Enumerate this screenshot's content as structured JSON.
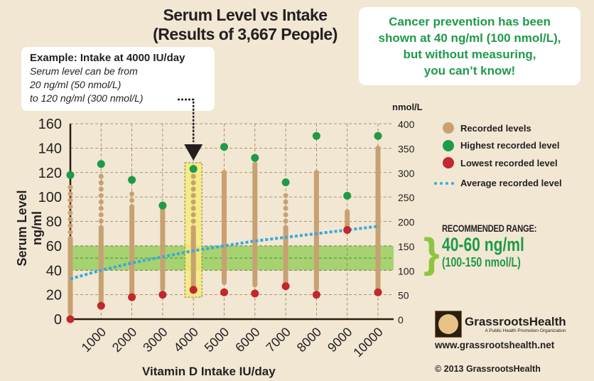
{
  "chart_data": {
    "type": "scatter",
    "title": "Serum Level vs Intake",
    "subtitle": "(Results of 3,667 People)",
    "xlabel": "Vitamin D Intake IU/day",
    "ylabel": "Serum Level ng/ml",
    "y2label": "nmol/L",
    "x": [
      0,
      1000,
      2000,
      3000,
      4000,
      5000,
      6000,
      7000,
      8000,
      9000,
      10000
    ],
    "x_tick_labels": [
      "1000",
      "2000",
      "3000",
      "4000",
      "5000",
      "6000",
      "7000",
      "8000",
      "9000",
      "10000"
    ],
    "ylim": [
      0,
      160
    ],
    "y_ticks": [
      "0",
      "20",
      "40",
      "60",
      "80",
      "100",
      "120",
      "140",
      "160"
    ],
    "y2_ticks": [
      "0",
      "50",
      "100",
      "150",
      "200",
      "250",
      "300",
      "350",
      "400"
    ],
    "grid": true,
    "legend_position": "right",
    "recommended_band": [
      40,
      60
    ],
    "highlight_x": 4000,
    "series": [
      {
        "name": "Recorded levels",
        "color": "#c8a172",
        "dense_ranges": [
          [
            5,
            66
          ],
          [
            15,
            75
          ],
          [
            20,
            92
          ],
          [
            25,
            90
          ],
          [
            25,
            75
          ],
          [
            30,
            120
          ],
          [
            28,
            127
          ],
          [
            30,
            75
          ],
          [
            25,
            120
          ],
          [
            75,
            88
          ],
          [
            25,
            140
          ]
        ],
        "sparse_ranges": [
          [
            66,
            110
          ],
          [
            75,
            117
          ],
          [
            92,
            107
          ],
          [
            90,
            91
          ],
          [
            75,
            117
          ],
          [
            120,
            121
          ],
          [
            127,
            128
          ],
          [
            75,
            105
          ],
          [
            120,
            121
          ],
          [
            80,
            88
          ],
          [
            25,
            140
          ]
        ]
      },
      {
        "name": "Highest recorded level",
        "color": "#1e9a4a",
        "values": [
          118,
          127,
          114,
          93,
          123,
          141,
          132,
          112,
          150,
          101,
          150
        ]
      },
      {
        "name": "Lowest recorded level",
        "color": "#c1272d",
        "values": [
          0,
          11,
          18,
          20,
          24,
          22,
          21,
          27,
          20,
          73,
          22
        ]
      },
      {
        "name": "Average recorded level",
        "color": "#3aa8dc",
        "values": [
          33,
          40,
          46,
          51,
          56,
          60,
          64,
          67,
          70,
          73,
          76
        ]
      }
    ]
  },
  "example": {
    "heading": "Example: Intake at 4000 IU/day",
    "lines": [
      "Serum level can be from",
      "20 ng/ml (50 nmol/L)",
      "to 120 ng/ml (300 nmol/L)"
    ]
  },
  "callout": [
    "Cancer prevention has been",
    "shown at 40 ng/ml (100 nmol/L),",
    "but without measuring,",
    "you can’t know!"
  ],
  "recommended": {
    "title": "RECOMMENDED RANGE:",
    "ng": "40-60 ng/ml",
    "nmol": "(100-150 nmol/L)"
  },
  "brand": {
    "name": "GrassrootsHealth",
    "tagline": "A Public Health Promotion Organization",
    "url": "www.grassrootshealth.net",
    "copyright": "© 2013 GrassrootsHealth"
  }
}
